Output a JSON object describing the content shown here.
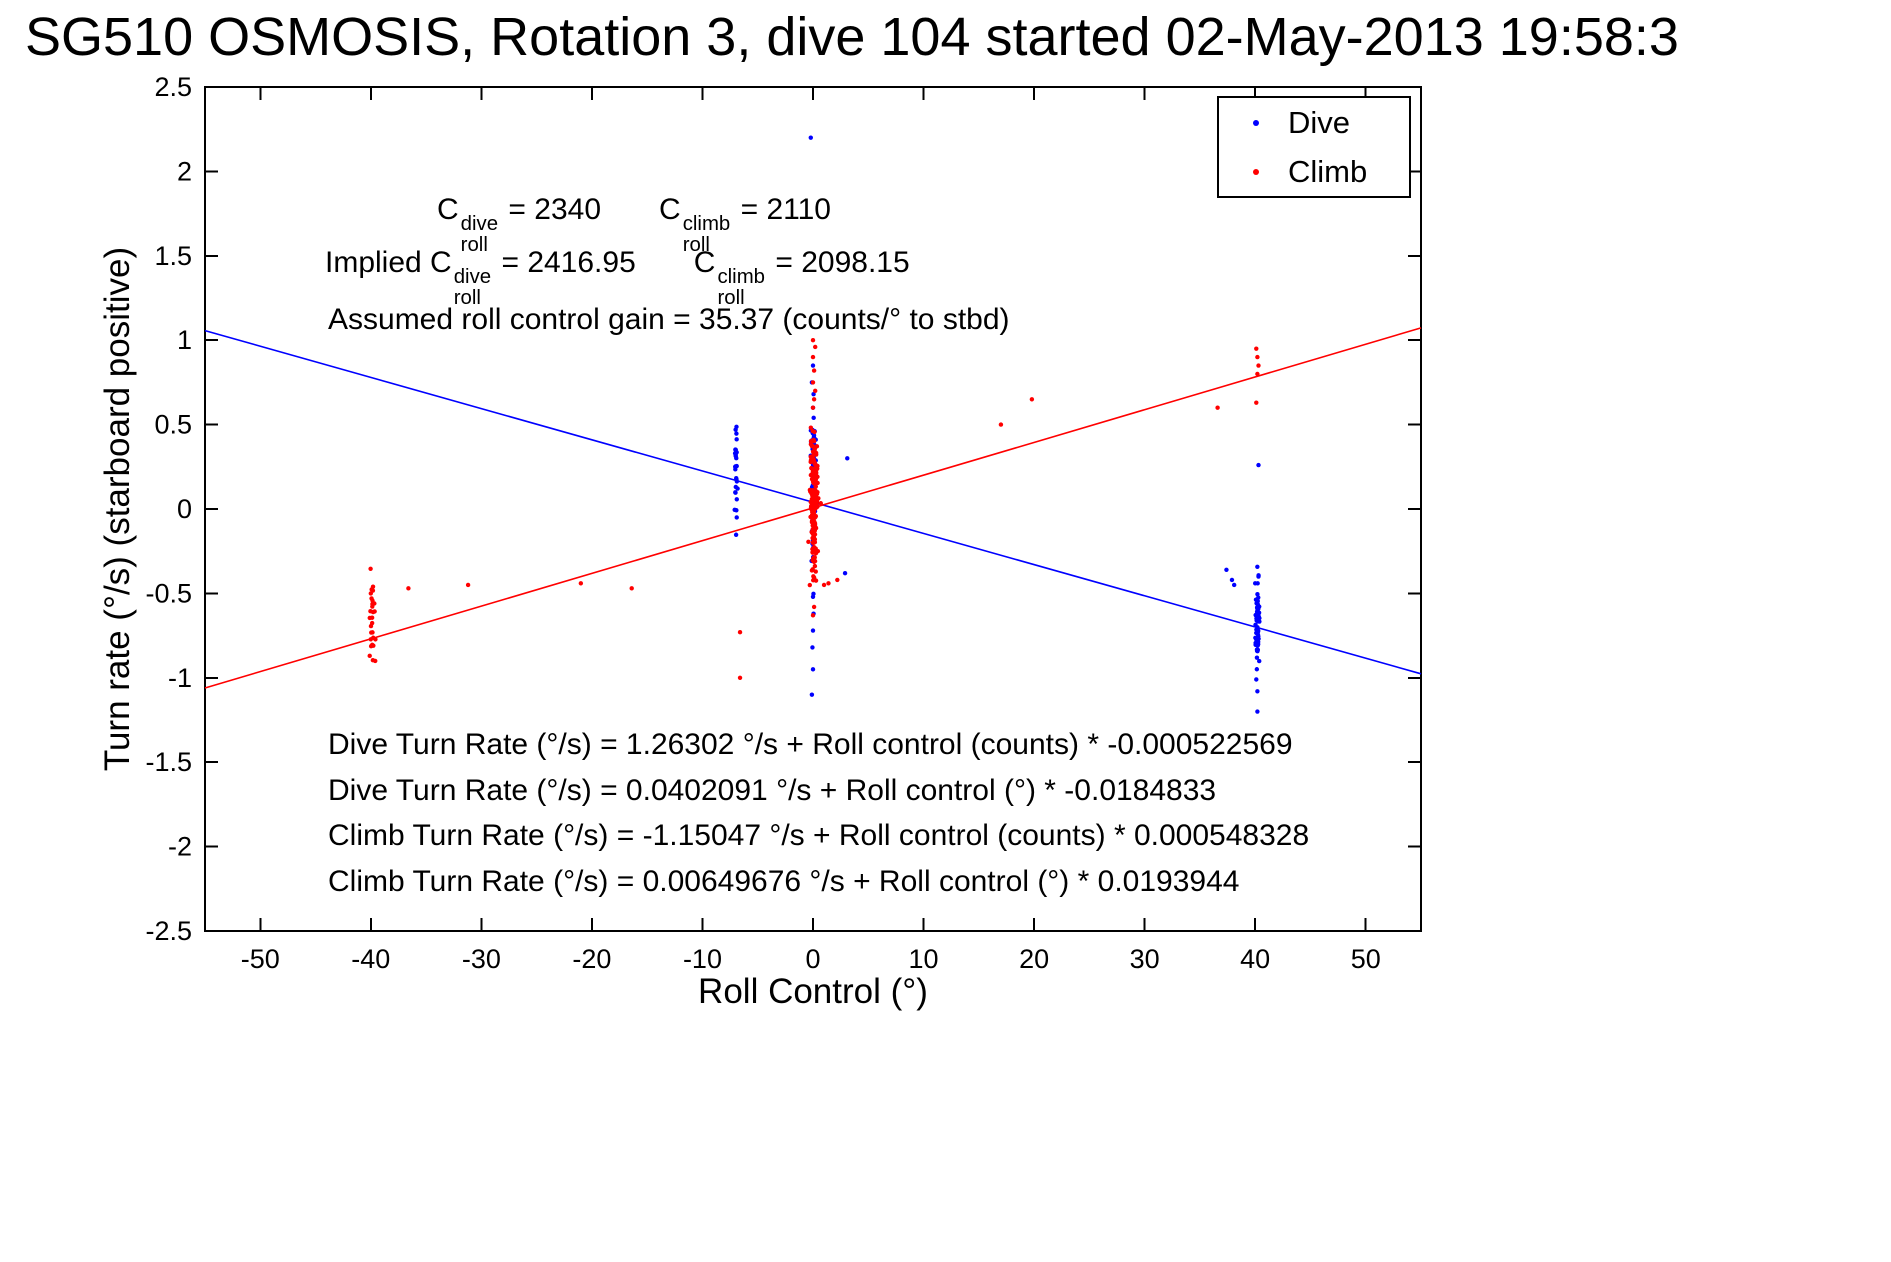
{
  "title": "SG510 OSMOSIS, Rotation 3, dive 104 started 02-May-2013 19:58:3",
  "annotations": {
    "c1_pre": "C",
    "c1_sup": "dive",
    "c1_sub": "roll",
    "c1_val": " = 2340",
    "c2_pre": "C",
    "c2_sup": "climb",
    "c2_sub": "roll",
    "c2_val": " = 2110",
    "c3_pre": "Implied C",
    "c3_sup": "dive",
    "c3_sub": "roll",
    "c3_val": " = 2416.95",
    "c4_pre": "C",
    "c4_sup": "climb",
    "c4_sub": "roll",
    "c4_val": " = 2098.15",
    "gain": "Assumed roll control gain = 35.37 (counts/° to stbd)",
    "eq1": "Dive Turn Rate (°/s) = 1.26302 °/s + Roll control (counts) * -0.000522569",
    "eq2": "Dive Turn Rate (°/s) = 0.0402091 °/s + Roll control (°) * -0.0184833",
    "eq3": "Climb Turn Rate (°/s) = -1.15047 °/s + Roll control (counts) * 0.000548328",
    "eq4": "Climb Turn Rate (°/s) = 0.00649676 °/s + Roll control (°) * 0.0193944"
  },
  "chart_data": {
    "type": "scatter",
    "title": "SG510 OSMOSIS, Rotation 3, dive 104 started 02-May-2013 19:58:3",
    "xlabel": "Roll Control (°)",
    "ylabel": "Turn rate (°/s) (starboard positive)",
    "xlim": [
      -55,
      55
    ],
    "ylim": [
      -2.5,
      2.5
    ],
    "grid": false,
    "xticks": {
      "values": [
        -50,
        -40,
        -30,
        -20,
        -10,
        0,
        10,
        20,
        30,
        40,
        50
      ],
      "labels": [
        "-50",
        "-40",
        "-30",
        "-20",
        "-10",
        "0",
        "10",
        "20",
        "30",
        "40",
        "50"
      ]
    },
    "yticks": {
      "values": [
        -2.5,
        -2,
        -1.5,
        -1,
        -0.5,
        0,
        0.5,
        1,
        1.5,
        2,
        2.5
      ],
      "labels": [
        "-2.5",
        "-2",
        "-1.5",
        "-1",
        "-0.5",
        "0",
        "0.5",
        "1",
        "1.5",
        "2",
        "2.5"
      ]
    },
    "legend": {
      "position": "top-right",
      "entries": [
        {
          "label": "Dive",
          "color": "#0000ff"
        },
        {
          "label": "Climb",
          "color": "#ff0000"
        }
      ]
    },
    "series": [
      {
        "name": "Dive",
        "color": "#0000ff",
        "fit_counts": {
          "intercept": 1.26302,
          "slope": -0.000522569
        },
        "fit_degrees": {
          "intercept": 0.0402091,
          "slope": -0.0184833
        },
        "clusters": [
          {
            "cx": 0.0,
            "cy": 0.33,
            "sx": 0.1,
            "sy": 0.1,
            "n": 45
          },
          {
            "cx": 0.05,
            "cy": 0.12,
            "sx": 0.08,
            "sy": 0.22,
            "n": 45
          },
          {
            "cx": -6.95,
            "cy": 0.2,
            "sx": 0.07,
            "sy": 0.13,
            "n": 26
          },
          {
            "cx": 40.2,
            "cy": -0.68,
            "sx": 0.09,
            "sy": 0.12,
            "n": 60
          }
        ],
        "points": [
          [
            -0.2,
            2.2
          ],
          [
            0,
            0.85
          ],
          [
            -0.1,
            0.75
          ],
          [
            0.05,
            0.68
          ],
          [
            0,
            0.6
          ],
          [
            0.1,
            -0.42
          ],
          [
            0,
            -0.52
          ],
          [
            0.05,
            -0.62
          ],
          [
            0,
            -0.72
          ],
          [
            -0.05,
            -0.82
          ],
          [
            0,
            -0.95
          ],
          [
            -0.1,
            -1.1
          ],
          [
            2.9,
            -0.38
          ],
          [
            3.1,
            0.3
          ],
          [
            40.2,
            -1.2
          ],
          [
            40.2,
            -1.08
          ],
          [
            40.1,
            -1.01
          ],
          [
            40.3,
            0.26
          ],
          [
            37.4,
            -0.36
          ],
          [
            37.9,
            -0.42
          ],
          [
            38.1,
            -0.45
          ],
          [
            40.0,
            -0.44
          ],
          [
            40.3,
            -0.4
          ],
          [
            -7.0,
            0.47
          ],
          [
            -6.9,
            -0.05
          ]
        ]
      },
      {
        "name": "Climb",
        "color": "#ff0000",
        "fit_counts": {
          "intercept": -1.15047,
          "slope": 0.000548328
        },
        "fit_degrees": {
          "intercept": 0.00649676,
          "slope": 0.0193944
        },
        "clusters": [
          {
            "cx": 0.12,
            "cy": 0.08,
            "sx": 0.16,
            "sy": 0.18,
            "n": 150
          },
          {
            "cx": 0.08,
            "cy": -0.12,
            "sx": 0.1,
            "sy": 0.16,
            "n": 70
          },
          {
            "cx": -39.85,
            "cy": -0.68,
            "sx": 0.13,
            "sy": 0.11,
            "n": 26
          }
        ],
        "points": [
          [
            0,
            1.0
          ],
          [
            0.2,
            0.96
          ],
          [
            0,
            0.9
          ],
          [
            0.1,
            0.82
          ],
          [
            0,
            0.75
          ],
          [
            0.2,
            0.7
          ],
          [
            0.1,
            0.65
          ],
          [
            0,
            0.6
          ],
          [
            1.0,
            -0.45
          ],
          [
            1.4,
            -0.44
          ],
          [
            2.2,
            -0.42
          ],
          [
            0.1,
            -0.58
          ],
          [
            0,
            -0.63
          ],
          [
            -39.8,
            -0.46
          ],
          [
            -40,
            -0.5
          ],
          [
            -39.6,
            -0.9
          ],
          [
            -40.1,
            -0.87
          ],
          [
            -36.6,
            -0.47
          ],
          [
            -31.2,
            -0.45
          ],
          [
            -21.0,
            -0.44
          ],
          [
            -16.4,
            -0.47
          ],
          [
            -6.6,
            -0.73
          ],
          [
            -6.6,
            -1.0
          ],
          [
            17.0,
            0.5
          ],
          [
            19.8,
            0.65
          ],
          [
            36.6,
            0.6
          ],
          [
            40.1,
            0.63
          ],
          [
            40.2,
            0.8
          ],
          [
            40.3,
            0.85
          ],
          [
            40.2,
            0.9
          ],
          [
            40.1,
            0.95
          ]
        ]
      }
    ],
    "lines": [
      {
        "name": "dive-fit",
        "color": "#0000ff",
        "intercept": 0.0402091,
        "slope": -0.0184833
      },
      {
        "name": "climb-fit",
        "color": "#ff0000",
        "intercept": 0.00649676,
        "slope": 0.0193944
      }
    ]
  }
}
